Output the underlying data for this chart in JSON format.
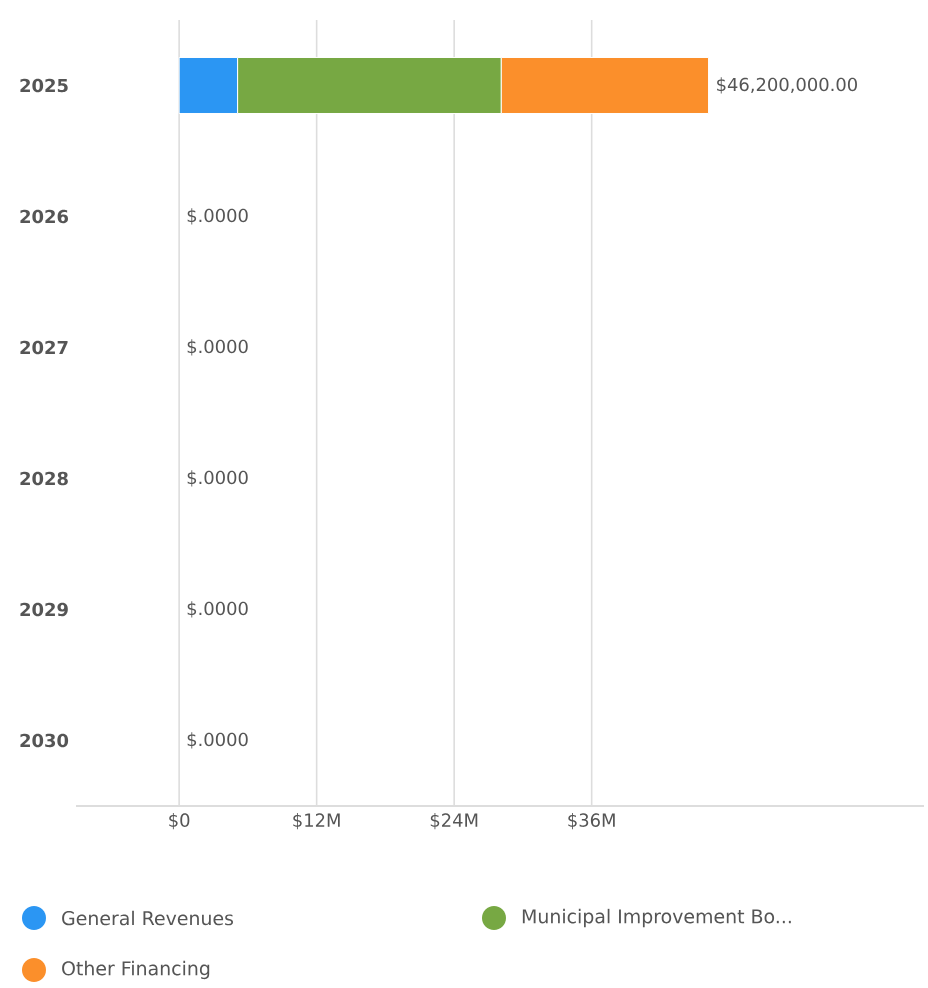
{
  "chart_data": {
    "type": "bar",
    "orientation": "horizontal",
    "stacked": true,
    "categories": [
      "2025",
      "2026",
      "2027",
      "2028",
      "2029",
      "2030"
    ],
    "series": [
      {
        "name": "General Revenues",
        "color": "#2b96f3",
        "values": [
          5.1,
          0,
          0,
          0,
          0,
          0
        ]
      },
      {
        "name": "Municipal Improvement Bo...",
        "color": "#77a843",
        "values": [
          23.0,
          0,
          0,
          0,
          0,
          0
        ]
      },
      {
        "name": "Other Financing",
        "color": "#fb8f2b",
        "values": [
          18.1,
          0,
          0,
          0,
          0,
          0
        ]
      }
    ],
    "totals": [
      "$46,200,000.00",
      "$.0000",
      "$.0000",
      "$.0000",
      "$.0000",
      "$.0000"
    ],
    "xlim": [
      -9,
      65
    ],
    "xticks": [
      {
        "value": 0,
        "label": "$0"
      },
      {
        "value": 12,
        "label": "$12M"
      },
      {
        "value": 24,
        "label": "$24M"
      },
      {
        "value": 36,
        "label": "$36M"
      }
    ],
    "grid": "x",
    "legend": "bottom"
  }
}
